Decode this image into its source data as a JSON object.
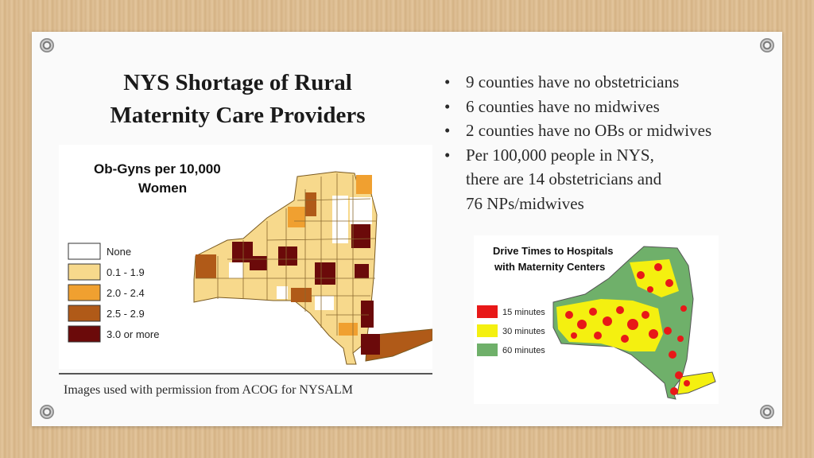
{
  "slide": {
    "title_line1": "NYS Shortage of Rural",
    "title_line2": "Maternity Care Providers",
    "bullets": [
      "9 counties have no obstetricians",
      "6 counties have no midwives",
      "2 counties have no OBs or midwives",
      "Per 100,000 people in NYS, there are 14 obstetricians and 76 NPs/midwives"
    ],
    "bullet4_line1": "Per 100,000 people in NYS,",
    "bullet4_line2": "there are 14 obstetricians and",
    "bullet4_line3": "76 NPs/midwives",
    "caption": "Images used with permission from ACOG for NYSALM"
  },
  "obgyn_map": {
    "title_line1": "Ob-Gyns per 10,000",
    "title_line2": "Women",
    "legend": [
      {
        "label": "None",
        "color": "#ffffff"
      },
      {
        "label": "0.1 - 1.9",
        "color": "#f7d98c"
      },
      {
        "label": "2.0 - 2.4",
        "color": "#f0a030"
      },
      {
        "label": "2.5 - 2.9",
        "color": "#b05a18"
      },
      {
        "label": "3.0 or more",
        "color": "#6b0a0a"
      }
    ]
  },
  "drive_map": {
    "title_line1": "Drive Times to Hospitals",
    "title_line2": "with Maternity Centers",
    "legend": [
      {
        "label": "15 minutes",
        "color": "#e81818"
      },
      {
        "label": "30 minutes",
        "color": "#f4f010"
      },
      {
        "label": "60 minutes",
        "color": "#6fb06a"
      }
    ]
  }
}
